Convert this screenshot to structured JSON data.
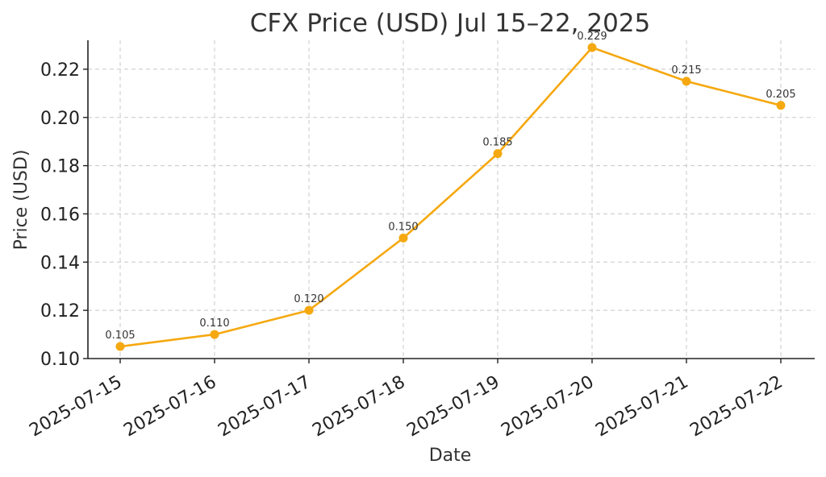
{
  "chart_data": {
    "type": "line",
    "title": "CFX Price (USD) Jul 15–22, 2025",
    "xlabel": "Date",
    "ylabel": "Price (USD)",
    "categories": [
      "2025-07-15",
      "2025-07-16",
      "2025-07-17",
      "2025-07-18",
      "2025-07-19",
      "2025-07-20",
      "2025-07-21",
      "2025-07-22"
    ],
    "series": [
      {
        "values": [
          0.105,
          0.11,
          0.12,
          0.15,
          0.185,
          0.229,
          0.215,
          0.205
        ],
        "data_labels": [
          "0.105",
          "0.110",
          "0.120",
          "0.150",
          "0.185",
          "0.229",
          "0.215",
          "0.205"
        ],
        "color": "#f5a80f"
      }
    ],
    "ylim": [
      0.1,
      0.232
    ],
    "yticks": [
      0.1,
      0.12,
      0.14,
      0.16,
      0.18,
      0.2,
      0.22
    ],
    "ytick_labels": [
      "0.10",
      "0.12",
      "0.14",
      "0.16",
      "0.18",
      "0.20",
      "0.22"
    ],
    "grid": true,
    "marker": "circle"
  }
}
